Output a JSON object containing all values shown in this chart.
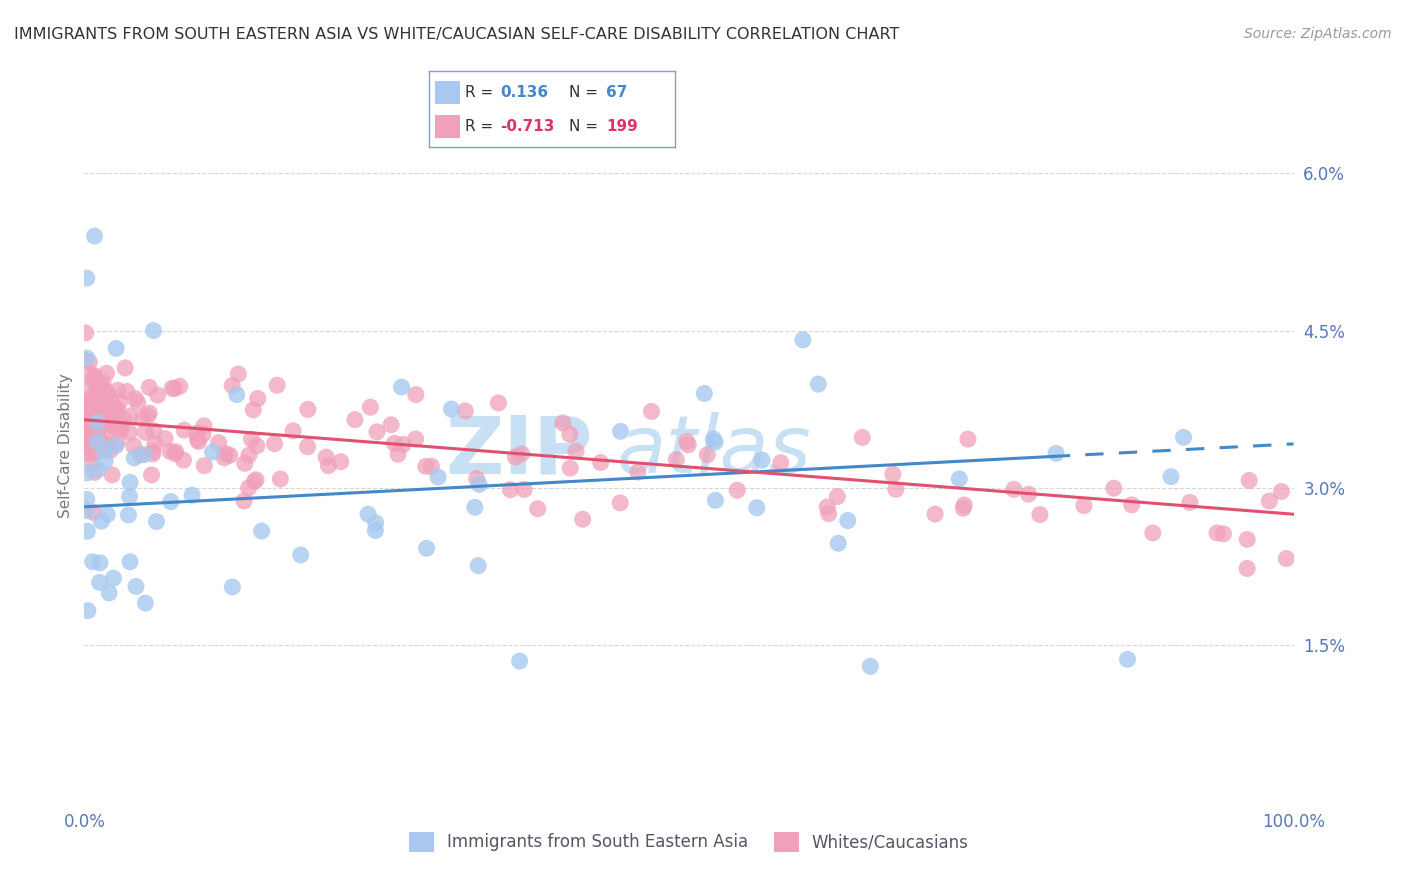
{
  "title": "IMMIGRANTS FROM SOUTH EASTERN ASIA VS WHITE/CAUCASIAN SELF-CARE DISABILITY CORRELATION CHART",
  "source": "Source: ZipAtlas.com",
  "xmin": 0.0,
  "xmax": 100.0,
  "ymin": 0.0,
  "ymax": 6.8,
  "ytick_vals": [
    1.5,
    3.0,
    4.5,
    6.0
  ],
  "ytick_labels": [
    "1.5%",
    "3.0%",
    "4.5%",
    "6.0%"
  ],
  "blue_line_y0": 2.82,
  "blue_line_y1": 3.42,
  "blue_line_solid_end": 80.0,
  "blue_line_dashed_start": 80.0,
  "pink_line_y0": 3.65,
  "pink_line_y1": 2.75,
  "color_blue_scatter": "#a8c8f0",
  "color_pink_scatter": "#f0a0b8",
  "color_blue_line": "#4488cc",
  "color_pink_line": "#e05070",
  "color_axis_ticks": "#5577bb",
  "color_grid": "#cccccc",
  "color_title": "#333333",
  "color_source": "#999999",
  "color_ylabel": "#777777",
  "color_legend_border": "#8899cc",
  "color_legend_text_dark": "#333333",
  "color_legend_blue": "#4488cc",
  "color_legend_pink": "#dd3366",
  "watermark_color": "#c8e0f4",
  "legend_r1": "0.136",
  "legend_n1": "67",
  "legend_r2": "-0.713",
  "legend_n2": "199"
}
